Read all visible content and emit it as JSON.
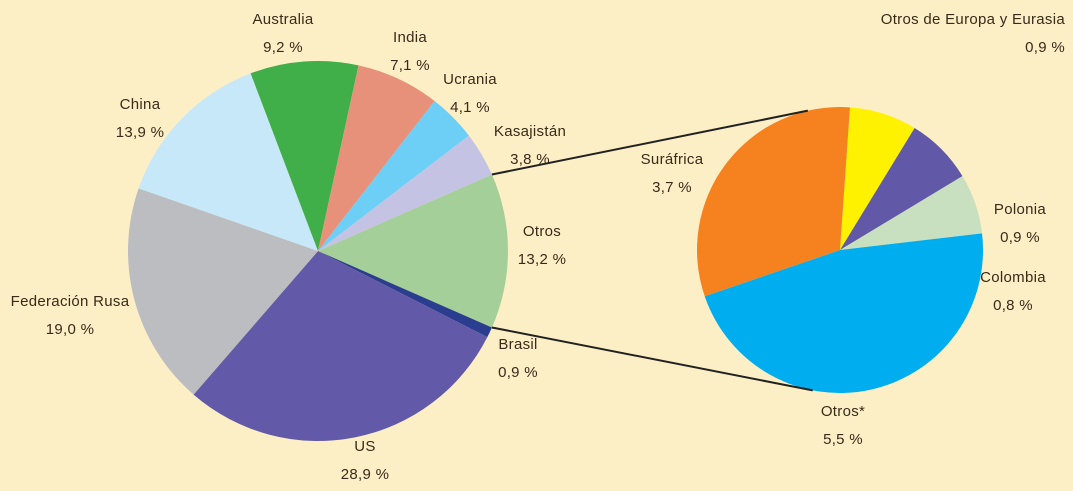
{
  "chart_data": [
    {
      "type": "pie",
      "categories": [
        "Otros",
        "Brasil",
        "US",
        "Federación Rusa",
        "China",
        "Australia",
        "India",
        "Ucrania",
        "Kasajistán"
      ],
      "values": [
        13.2,
        0.9,
        28.9,
        19.0,
        13.9,
        9.2,
        7.1,
        4.1,
        3.8
      ],
      "value_labels": [
        "13,2 %",
        "0,9 %",
        "28,9 %",
        "19,0 %",
        "13,9 %",
        "9,2 %",
        "7,1 %",
        "4,1 %",
        "3,8 %"
      ],
      "colors": [
        "#a5cf98",
        "#2b3d8f",
        "#625aa8",
        "#bcbdc0",
        "#c7e8f8",
        "#40ae49",
        "#e8917a",
        "#6dcff6",
        "#c4c3e3"
      ]
    },
    {
      "type": "pie",
      "categories": [
        "Otros de Europa y Eurasia",
        "Polonia",
        "Colombia",
        "Otros*",
        "Suráfrica"
      ],
      "values": [
        0.9,
        0.9,
        0.8,
        5.5,
        3.7
      ],
      "value_labels": [
        "0,9 %",
        "0,9 %",
        "0,8 %",
        "5,5 %",
        "3,7 %"
      ],
      "colors": [
        "#fff200",
        "#6159a8",
        "#c8dfc0",
        "#00aeef",
        "#f5821f"
      ]
    }
  ]
}
